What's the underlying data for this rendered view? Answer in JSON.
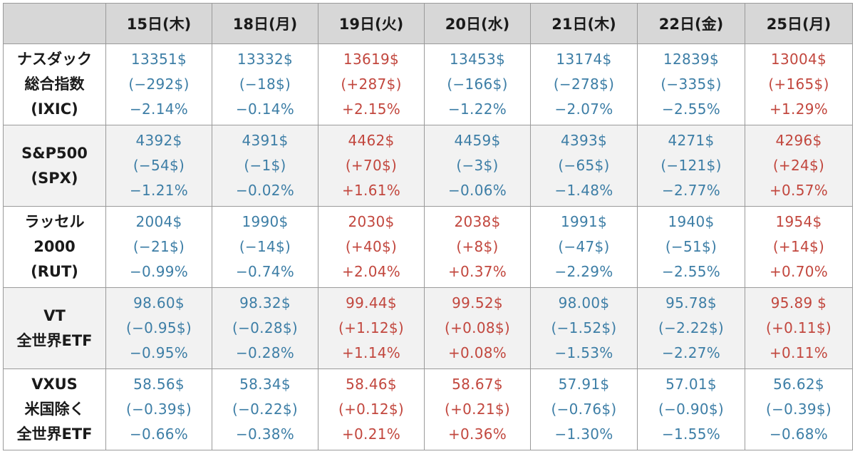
{
  "table": {
    "columns": [
      "15日(木)",
      "18日(月)",
      "19日(火)",
      "20日(水)",
      "21日(木)",
      "22日(金)",
      "25日(月)"
    ],
    "rows": [
      {
        "label": [
          "ナスダック",
          "総合指数",
          "(IXIC)"
        ],
        "cells": [
          {
            "price": "13351$",
            "change": "(−292$)",
            "pct": "−2.14%",
            "dir": "neg"
          },
          {
            "price": "13332$",
            "change": "(−18$)",
            "pct": "−0.14%",
            "dir": "neg"
          },
          {
            "price": "13619$",
            "change": "(+287$)",
            "pct": "+2.15%",
            "dir": "pos"
          },
          {
            "price": "13453$",
            "change": "(−166$)",
            "pct": "−1.22%",
            "dir": "neg"
          },
          {
            "price": "13174$",
            "change": "(−278$)",
            "pct": "−2.07%",
            "dir": "neg"
          },
          {
            "price": "12839$",
            "change": "(−335$)",
            "pct": "−2.55%",
            "dir": "neg"
          },
          {
            "price": "13004$",
            "change": "(+165$)",
            "pct": "+1.29%",
            "dir": "pos"
          }
        ]
      },
      {
        "label": [
          "S&P500",
          "(SPX)"
        ],
        "cells": [
          {
            "price": "4392$",
            "change": "(−54$)",
            "pct": "−1.21%",
            "dir": "neg"
          },
          {
            "price": "4391$",
            "change": "(−1$)",
            "pct": "−0.02%",
            "dir": "neg"
          },
          {
            "price": "4462$",
            "change": "(+70$)",
            "pct": "+1.61%",
            "dir": "pos"
          },
          {
            "price": "4459$",
            "change": "(−3$)",
            "pct": "−0.06%",
            "dir": "neg"
          },
          {
            "price": "4393$",
            "change": "(−65$)",
            "pct": "−1.48%",
            "dir": "neg"
          },
          {
            "price": "4271$",
            "change": "(−121$)",
            "pct": "−2.77%",
            "dir": "neg"
          },
          {
            "price": "4296$",
            "change": "(+24$)",
            "pct": "+0.57%",
            "dir": "pos"
          }
        ]
      },
      {
        "label": [
          "ラッセル",
          "2000",
          "(RUT)"
        ],
        "cells": [
          {
            "price": "2004$",
            "change": "(−21$)",
            "pct": "−0.99%",
            "dir": "neg"
          },
          {
            "price": "1990$",
            "change": "(−14$)",
            "pct": "−0.74%",
            "dir": "neg"
          },
          {
            "price": "2030$",
            "change": "(+40$)",
            "pct": "+2.04%",
            "dir": "pos"
          },
          {
            "price": "2038$",
            "change": "(+8$)",
            "pct": "+0.37%",
            "dir": "pos"
          },
          {
            "price": "1991$",
            "change": "(−47$)",
            "pct": "−2.29%",
            "dir": "neg"
          },
          {
            "price": "1940$",
            "change": "(−51$)",
            "pct": "−2.55%",
            "dir": "neg"
          },
          {
            "price": "1954$",
            "change": "(+14$)",
            "pct": "+0.70%",
            "dir": "pos"
          }
        ]
      },
      {
        "label": [
          "VT",
          "全世界ETF"
        ],
        "cells": [
          {
            "price": "98.60$",
            "change": "(−0.95$)",
            "pct": "−0.95%",
            "dir": "neg"
          },
          {
            "price": "98.32$",
            "change": "(−0.28$)",
            "pct": "−0.28%",
            "dir": "neg"
          },
          {
            "price": "99.44$",
            "change": "(+1.12$)",
            "pct": "+1.14%",
            "dir": "pos"
          },
          {
            "price": "99.52$",
            "change": "(+0.08$)",
            "pct": "+0.08%",
            "dir": "pos"
          },
          {
            "price": "98.00$",
            "change": "(−1.52$)",
            "pct": "−1.53%",
            "dir": "neg"
          },
          {
            "price": "95.78$",
            "change": "(−2.22$)",
            "pct": "−2.27%",
            "dir": "neg"
          },
          {
            "price": "95.89 $",
            "change": "(+0.11$)",
            "pct": "+0.11%",
            "dir": "pos"
          }
        ]
      },
      {
        "label": [
          "VXUS",
          "米国除く",
          "全世界ETF"
        ],
        "cells": [
          {
            "price": "58.56$",
            "change": "(−0.39$)",
            "pct": "−0.66%",
            "dir": "neg"
          },
          {
            "price": "58.34$",
            "change": "(−0.22$)",
            "pct": "−0.38%",
            "dir": "neg"
          },
          {
            "price": "58.46$",
            "change": "(+0.12$)",
            "pct": "+0.21%",
            "dir": "pos"
          },
          {
            "price": "58.67$",
            "change": "(+0.21$)",
            "pct": "+0.36%",
            "dir": "pos"
          },
          {
            "price": "57.91$",
            "change": "(−0.76$)",
            "pct": "−1.30%",
            "dir": "neg"
          },
          {
            "price": "57.01$",
            "change": "(−0.90$)",
            "pct": "−1.55%",
            "dir": "neg"
          },
          {
            "price": "56.62$",
            "change": "(−0.39$)",
            "pct": "−0.68%",
            "dir": "neg"
          }
        ]
      }
    ],
    "colors": {
      "up": "#c2473e",
      "down": "#3d7ea6",
      "header_bg": "#d7d7d7",
      "alt_row_bg": "#f2f2f2"
    }
  }
}
